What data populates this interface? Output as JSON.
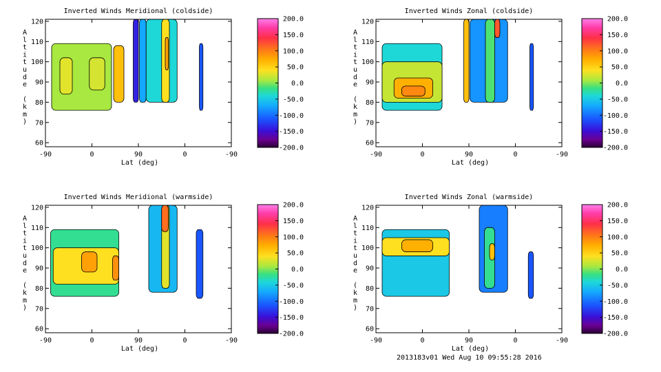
{
  "chart_data": [
    {
      "type": "heatmap",
      "title": "Inverted Winds Meridional (coldside)",
      "xlabel": "Lat (deg)",
      "ylabel": "Altitude (km)",
      "x_ticks": [
        "-90",
        "0",
        "90",
        "0",
        "-90"
      ],
      "y_ticks": [
        60,
        70,
        80,
        90,
        100,
        110,
        120
      ],
      "ylim": [
        58,
        121
      ],
      "colorbar": {
        "min": -200,
        "max": 200,
        "ticks": [
          "200.0",
          "150.0",
          "100.0",
          "50.0",
          "0.0",
          "-50.0",
          "-100.0",
          "-150.0",
          "-200.0"
        ]
      },
      "regions": [
        {
          "x": [
            -78,
            38
          ],
          "y": [
            76,
            109
          ],
          "value": 10
        },
        {
          "x": [
            -62,
            -38
          ],
          "y": [
            84,
            102
          ],
          "value": 30
        },
        {
          "x": [
            -5,
            25
          ],
          "y": [
            86,
            102
          ],
          "value": 25
        },
        {
          "x": [
            42,
            62
          ],
          "y": [
            80,
            108
          ],
          "value": 60
        },
        {
          "x": [
            80,
            90
          ],
          "y": [
            80,
            121
          ],
          "value": -140
        },
        {
          "x": [
            92,
            105
          ],
          "y": [
            80,
            121
          ],
          "value": -70
        },
        {
          "x": [
            105,
            165
          ],
          "y": [
            80,
            121
          ],
          "value": -40
        },
        {
          "x": [
            135,
            150
          ],
          "y": [
            80,
            121
          ],
          "value": 40
        },
        {
          "x": [
            142,
            148
          ],
          "y": [
            96,
            112
          ],
          "value": 80
        },
        {
          "x": [
            208,
            215
          ],
          "y": [
            76,
            109
          ],
          "value": -110
        }
      ]
    },
    {
      "type": "heatmap",
      "title": "Inverted Winds Zonal (coldside)",
      "xlabel": "Lat (deg)",
      "ylabel": "Altitude (km)",
      "x_ticks": [
        "-90",
        "0",
        "90",
        "0",
        "-90"
      ],
      "y_ticks": [
        60,
        70,
        80,
        90,
        100,
        110,
        120
      ],
      "ylim": [
        58,
        121
      ],
      "colorbar": {
        "min": -200,
        "max": 200,
        "ticks": [
          "200.0",
          "150.0",
          "100.0",
          "50.0",
          "0.0",
          "-50.0",
          "-100.0",
          "-150.0",
          "-200.0"
        ]
      },
      "regions": [
        {
          "x": [
            -78,
            38
          ],
          "y": [
            76,
            109
          ],
          "value": -40
        },
        {
          "x": [
            -78,
            38
          ],
          "y": [
            80,
            100
          ],
          "value": 20
        },
        {
          "x": [
            -55,
            20
          ],
          "y": [
            82,
            92
          ],
          "value": 70
        },
        {
          "x": [
            -40,
            5
          ],
          "y": [
            83,
            88
          ],
          "value": 95
        },
        {
          "x": [
            80,
            90
          ],
          "y": [
            80,
            121
          ],
          "value": 60
        },
        {
          "x": [
            92,
            165
          ],
          "y": [
            80,
            121
          ],
          "value": -80
        },
        {
          "x": [
            122,
            140
          ],
          "y": [
            80,
            121
          ],
          "value": -10
        },
        {
          "x": [
            140,
            150
          ],
          "y": [
            112,
            121
          ],
          "value": 120
        },
        {
          "x": [
            208,
            215
          ],
          "y": [
            76,
            109
          ],
          "value": -110
        }
      ]
    },
    {
      "type": "heatmap",
      "title": "Inverted Winds Meridional (warmside)",
      "xlabel": "Lat (deg)",
      "ylabel": "Altitude (km)",
      "x_ticks": [
        "-90",
        "0",
        "90",
        "0",
        "-90"
      ],
      "y_ticks": [
        60,
        70,
        80,
        90,
        100,
        110,
        120
      ],
      "ylim": [
        58,
        121
      ],
      "colorbar": {
        "min": -200,
        "max": 200,
        "ticks": [
          "200.0",
          "150.0",
          "100.0",
          "50.0",
          "0.0",
          "-50.0",
          "-100.0",
          "-150.0",
          "-200.0"
        ]
      },
      "regions": [
        {
          "x": [
            -80,
            52
          ],
          "y": [
            76,
            109
          ],
          "value": -20
        },
        {
          "x": [
            -75,
            52
          ],
          "y": [
            82,
            100
          ],
          "value": 40
        },
        {
          "x": [
            -20,
            10
          ],
          "y": [
            88,
            98
          ],
          "value": 80
        },
        {
          "x": [
            40,
            52
          ],
          "y": [
            84,
            96
          ],
          "value": 90
        },
        {
          "x": [
            110,
            165
          ],
          "y": [
            78,
            121
          ],
          "value": -60
        },
        {
          "x": [
            135,
            150
          ],
          "y": [
            80,
            121
          ],
          "value": 30
        },
        {
          "x": [
            135,
            148
          ],
          "y": [
            108,
            121
          ],
          "value": 110
        },
        {
          "x": [
            202,
            215
          ],
          "y": [
            75,
            109
          ],
          "value": -110
        }
      ]
    },
    {
      "type": "heatmap",
      "title": "Inverted Winds Zonal (warmside)",
      "xlabel": "Lat (deg)",
      "ylabel": "Altitude (km)",
      "x_ticks": [
        "-90",
        "0",
        "90",
        "0",
        "-90"
      ],
      "y_ticks": [
        60,
        70,
        80,
        90,
        100,
        110,
        120
      ],
      "ylim": [
        58,
        121
      ],
      "colorbar": {
        "min": -200,
        "max": 200,
        "ticks": [
          "200.0",
          "150.0",
          "100.0",
          "50.0",
          "0.0",
          "-50.0",
          "-100.0",
          "-150.0",
          "-200.0"
        ]
      },
      "regions": [
        {
          "x": [
            -78,
            52
          ],
          "y": [
            76,
            109
          ],
          "value": -50
        },
        {
          "x": [
            -78,
            52
          ],
          "y": [
            96,
            105
          ],
          "value": 40
        },
        {
          "x": [
            -40,
            20
          ],
          "y": [
            98,
            104
          ],
          "value": 70
        },
        {
          "x": [
            110,
            165
          ],
          "y": [
            78,
            121
          ],
          "value": -90
        },
        {
          "x": [
            120,
            140
          ],
          "y": [
            80,
            110
          ],
          "value": -20
        },
        {
          "x": [
            130,
            140
          ],
          "y": [
            94,
            102
          ],
          "value": 60
        },
        {
          "x": [
            205,
            215
          ],
          "y": [
            75,
            98
          ],
          "value": -110
        }
      ]
    }
  ],
  "footer": "2013183v01 Wed Aug 10 09:55:28 2016"
}
